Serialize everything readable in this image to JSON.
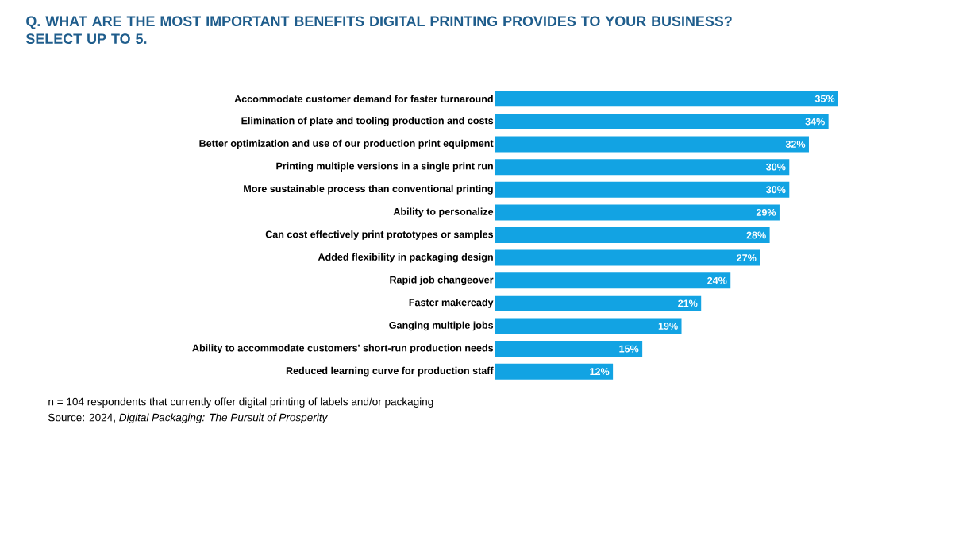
{
  "chart_data": {
    "type": "bar",
    "orientation": "horizontal",
    "title": "Q. WHAT ARE THE MOST IMPORTANT BENEFITS DIGITAL PRINTING PROVIDES TO YOUR BUSINESS? SELECT UP TO 5.",
    "categories": [
      "Accommodate customer demand for faster turnaround",
      "Elimination of plate and tooling production and costs",
      "Better optimization and use of our production print equipment",
      "Printing multiple versions in a single print run",
      "More sustainable process than conventional printing",
      "Ability to personalize",
      "Can cost effectively print prototypes or samples",
      "Added flexibility in packaging design",
      "Rapid job changeover",
      "Faster makeready",
      "Ganging multiple jobs",
      "Ability to accommodate customers' short-run production needs",
      "Reduced learning curve for production staff"
    ],
    "values": [
      35,
      34,
      32,
      30,
      30,
      29,
      28,
      27,
      24,
      21,
      19,
      15,
      12
    ],
    "value_labels": [
      "35%",
      "34%",
      "32%",
      "30%",
      "30%",
      "29%",
      "28%",
      "27%",
      "24%",
      "21%",
      "19%",
      "15%",
      "12%"
    ],
    "color": "#12a3e3",
    "annotations": [
      "n = 104 respondents that currently offer digital printing of labels and/or packaging",
      "Source: 2024, *Digital Packaging: The Pursuit of Prosperity*"
    ]
  }
}
